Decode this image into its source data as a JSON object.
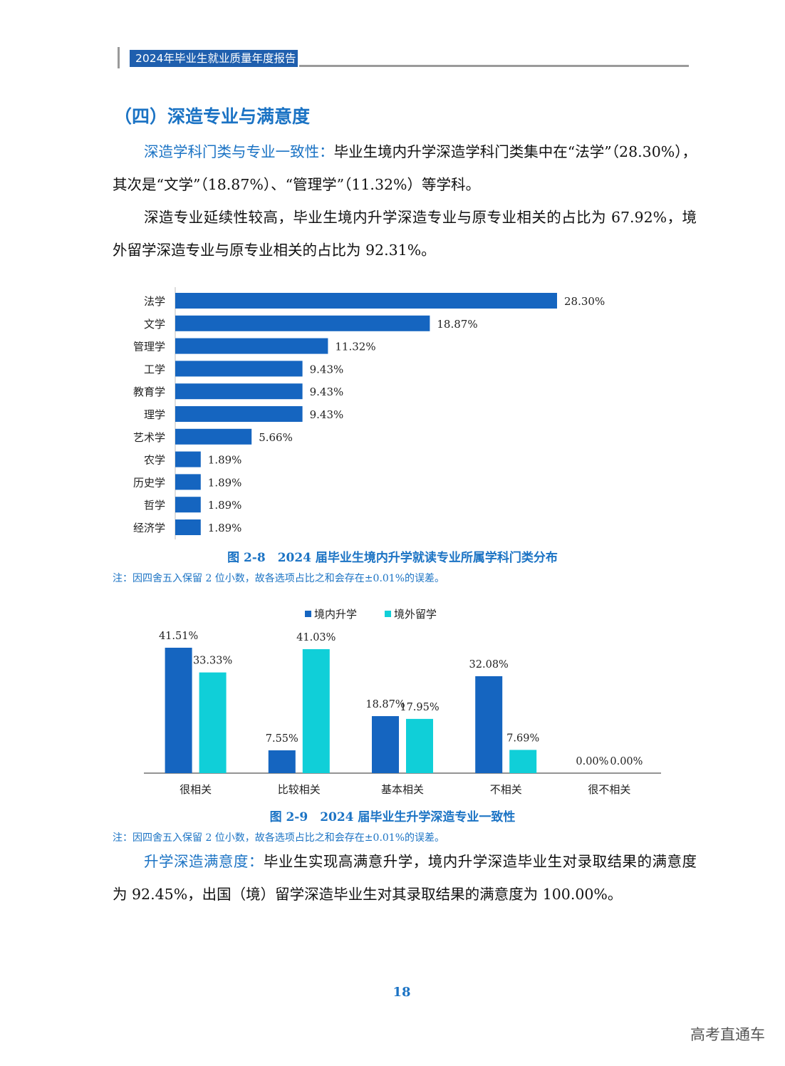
{
  "header": {
    "title": "2024年毕业生就业质量年度报告"
  },
  "section_title": "（四）深造专业与满意度",
  "para1": {
    "lead": "深造学科门类与专业一致性：",
    "text": "毕业生境内升学深造学科门类集中在“法学”（28.30%），其次是“文学”（18.87%）、“管理学”（11.32%）等学科。"
  },
  "para2": {
    "text": "深造专业延续性较高，毕业生境内升学深造专业与原专业相关的占比为 67.92%，境外留学深造专业与原专业相关的占比为 92.31%。"
  },
  "figure1": {
    "caption": "图 2-8　2024 届毕业生境内升学就读专业所属学科门类分布",
    "note": "注：因四舍五入保留 2 位小数，故各选项占比之和会存在±0.01%的误差。"
  },
  "figure2": {
    "caption": "图 2-9　2024 届毕业生升学深造专业一致性",
    "note": "注：因四舍五入保留 2 位小数，故各选项占比之和会存在±0.01%的误差。"
  },
  "para3": {
    "lead": "升学深造满意度：",
    "text": "毕业生实现高满意升学，境内升学深造毕业生对录取结果的满意度为 92.45%，出国（境）留学深造毕业生对其录取结果的满意度为 100.00%。"
  },
  "page_number": "18",
  "watermark": "高考直通车",
  "chart_data": [
    {
      "type": "bar",
      "orientation": "horizontal",
      "categories": [
        "法学",
        "文学",
        "管理学",
        "工学",
        "教育学",
        "理学",
        "艺术学",
        "农学",
        "历史学",
        "哲学",
        "经济学"
      ],
      "values": [
        28.3,
        18.87,
        11.32,
        9.43,
        9.43,
        9.43,
        5.66,
        1.89,
        1.89,
        1.89,
        1.89
      ],
      "labels": [
        "28.30%",
        "18.87%",
        "11.32%",
        "9.43%",
        "9.43%",
        "9.43%",
        "5.66%",
        "1.89%",
        "1.89%",
        "1.89%",
        "1.89%"
      ],
      "title": "",
      "color": "#1565c0",
      "xlim": [
        0,
        28.3
      ]
    },
    {
      "type": "bar",
      "orientation": "vertical",
      "categories": [
        "很相关",
        "比较相关",
        "基本相关",
        "不相关",
        "很不相关"
      ],
      "series": [
        {
          "name": "境内升学",
          "values": [
            41.51,
            7.55,
            18.87,
            32.08,
            0.0
          ],
          "labels": [
            "41.51%",
            "7.55%",
            "18.87%",
            "32.08%",
            "0.00%"
          ],
          "color": "#1565c0"
        },
        {
          "name": "境外留学",
          "values": [
            33.33,
            41.03,
            17.95,
            7.69,
            0.0
          ],
          "labels": [
            "33.33%",
            "41.03%",
            "17.95%",
            "7.69%",
            "0.00%"
          ],
          "color": "#10cfd8"
        }
      ],
      "legend": "top-center",
      "ylim": [
        0,
        41.51
      ]
    }
  ]
}
